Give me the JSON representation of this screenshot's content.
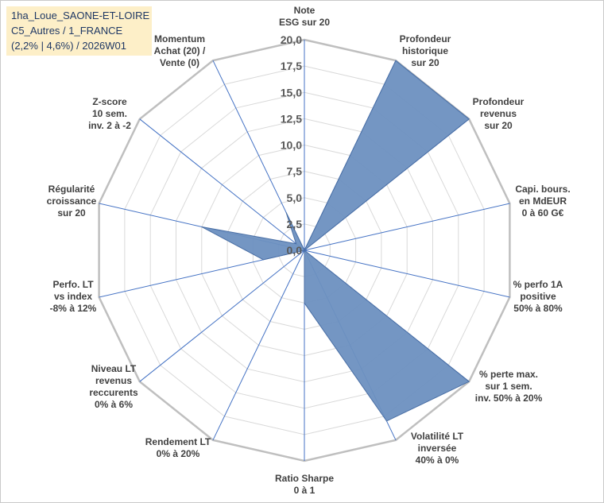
{
  "title_lines": [
    "1ha_Loue_SAONE-ET-LOIRE",
    "C5_Autres / 1_FRANCE",
    "(2,2% | 4,6%) / 2026W01"
  ],
  "chart_data": {
    "type": "radar",
    "rmax": 20,
    "ticks": [
      "0,0",
      "2,5",
      "5,0",
      "7,5",
      "10,0",
      "12,5",
      "15,0",
      "17,5",
      "20,0"
    ],
    "grid": true,
    "fill_color": "#6d90c0",
    "stroke_color": "#4a6fa5",
    "grid_color": "#d9d9d9",
    "spoke_color": "#4472c4",
    "axes": [
      {
        "label": [
          "Note",
          "ESG sur 20"
        ],
        "value": 0
      },
      {
        "label": [
          "Profondeur",
          "historique",
          "sur 20"
        ],
        "value": 20
      },
      {
        "label": [
          "Profondeur",
          "revenus",
          "sur 20"
        ],
        "value": 20
      },
      {
        "label": [
          "Capi. bours.",
          "en MdEUR",
          "0 à 60 G€"
        ],
        "value": 0
      },
      {
        "label": [
          "% perfo 1A",
          "positive",
          "50% à 80%"
        ],
        "value": 0
      },
      {
        "label": [
          "% perte max.",
          "sur 1 sem.",
          "inv. 50% à 20%"
        ],
        "value": 20
      },
      {
        "label": [
          "Volatilité LT",
          "inversée",
          "40% à 0%"
        ],
        "value": 18
      },
      {
        "label": [
          "Ratio Sharpe",
          "0 à 1"
        ],
        "value": 5
      },
      {
        "label": [
          "Rendement LT",
          "0% à 20%"
        ],
        "value": 0
      },
      {
        "label": [
          "Niveau LT",
          "revenus",
          "reccurents",
          "0% à 6%"
        ],
        "value": 0
      },
      {
        "label": [
          "Perfo. LT",
          "vs index",
          "-8% à 12%"
        ],
        "value": 4
      },
      {
        "label": [
          "Régularité",
          "croissance",
          "sur 20"
        ],
        "value": 10
      },
      {
        "label": [
          "Z-score",
          "10 sem.",
          "inv. 2 à -2"
        ],
        "value": 1
      },
      {
        "label": [
          "Momentum",
          "Achat (20) /",
          "Vente (0)"
        ],
        "value": 4
      }
    ]
  }
}
